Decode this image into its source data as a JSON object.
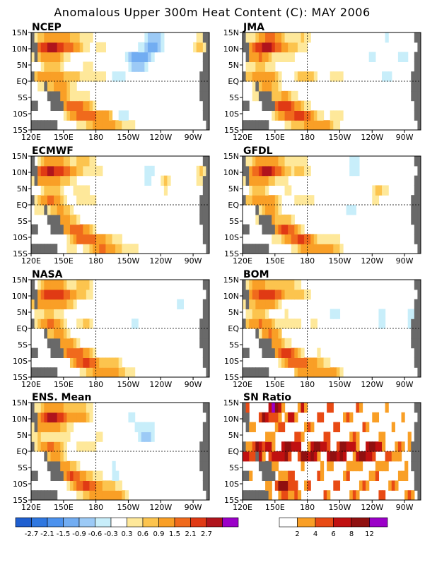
{
  "title": "Anomalous Upper 300m Heat Content (C): MAY 2006",
  "panels": [
    {
      "name": "NCEP",
      "kind": "anom"
    },
    {
      "name": "JMA",
      "kind": "anom"
    },
    {
      "name": "ECMWF",
      "kind": "anom"
    },
    {
      "name": "GFDL",
      "kind": "anom"
    },
    {
      "name": "NASA",
      "kind": "anom"
    },
    {
      "name": "BOM",
      "kind": "anom"
    },
    {
      "name": "ENS. Mean",
      "kind": "anom"
    },
    {
      "name": "SN Ratio",
      "kind": "sn"
    }
  ],
  "axes": {
    "lat_labels": [
      "15N",
      "10N",
      "5N",
      "EQ",
      "5S",
      "10S",
      "15S"
    ],
    "lon_labels": [
      "120E",
      "150E",
      "180",
      "150W",
      "120W",
      "90W"
    ]
  },
  "colorbars": {
    "anomaly": {
      "colors": [
        "#1f5fd0",
        "#2f77e0",
        "#4c92ee",
        "#72adf2",
        "#9ccaf6",
        "#c8eefa",
        "#ffffff",
        "#fee89a",
        "#fcc44e",
        "#f99f26",
        "#f06a1c",
        "#e03a14",
        "#b0141c",
        "#9b00c8"
      ],
      "labels": [
        "-2.7",
        "-2.1",
        "-1.5",
        "-0.9",
        "-0.6",
        "-0.3",
        "0.3",
        "0.6",
        "0.9",
        "1.5",
        "2.1",
        "2.7"
      ]
    },
    "sn_ratio": {
      "colors": [
        "#ffffff",
        "#f99f26",
        "#e84a14",
        "#c01010",
        "#901010",
        "#9b00c8"
      ],
      "labels": [
        "2",
        "4",
        "6",
        "8",
        "12"
      ]
    }
  },
  "land_color": "#696969"
}
